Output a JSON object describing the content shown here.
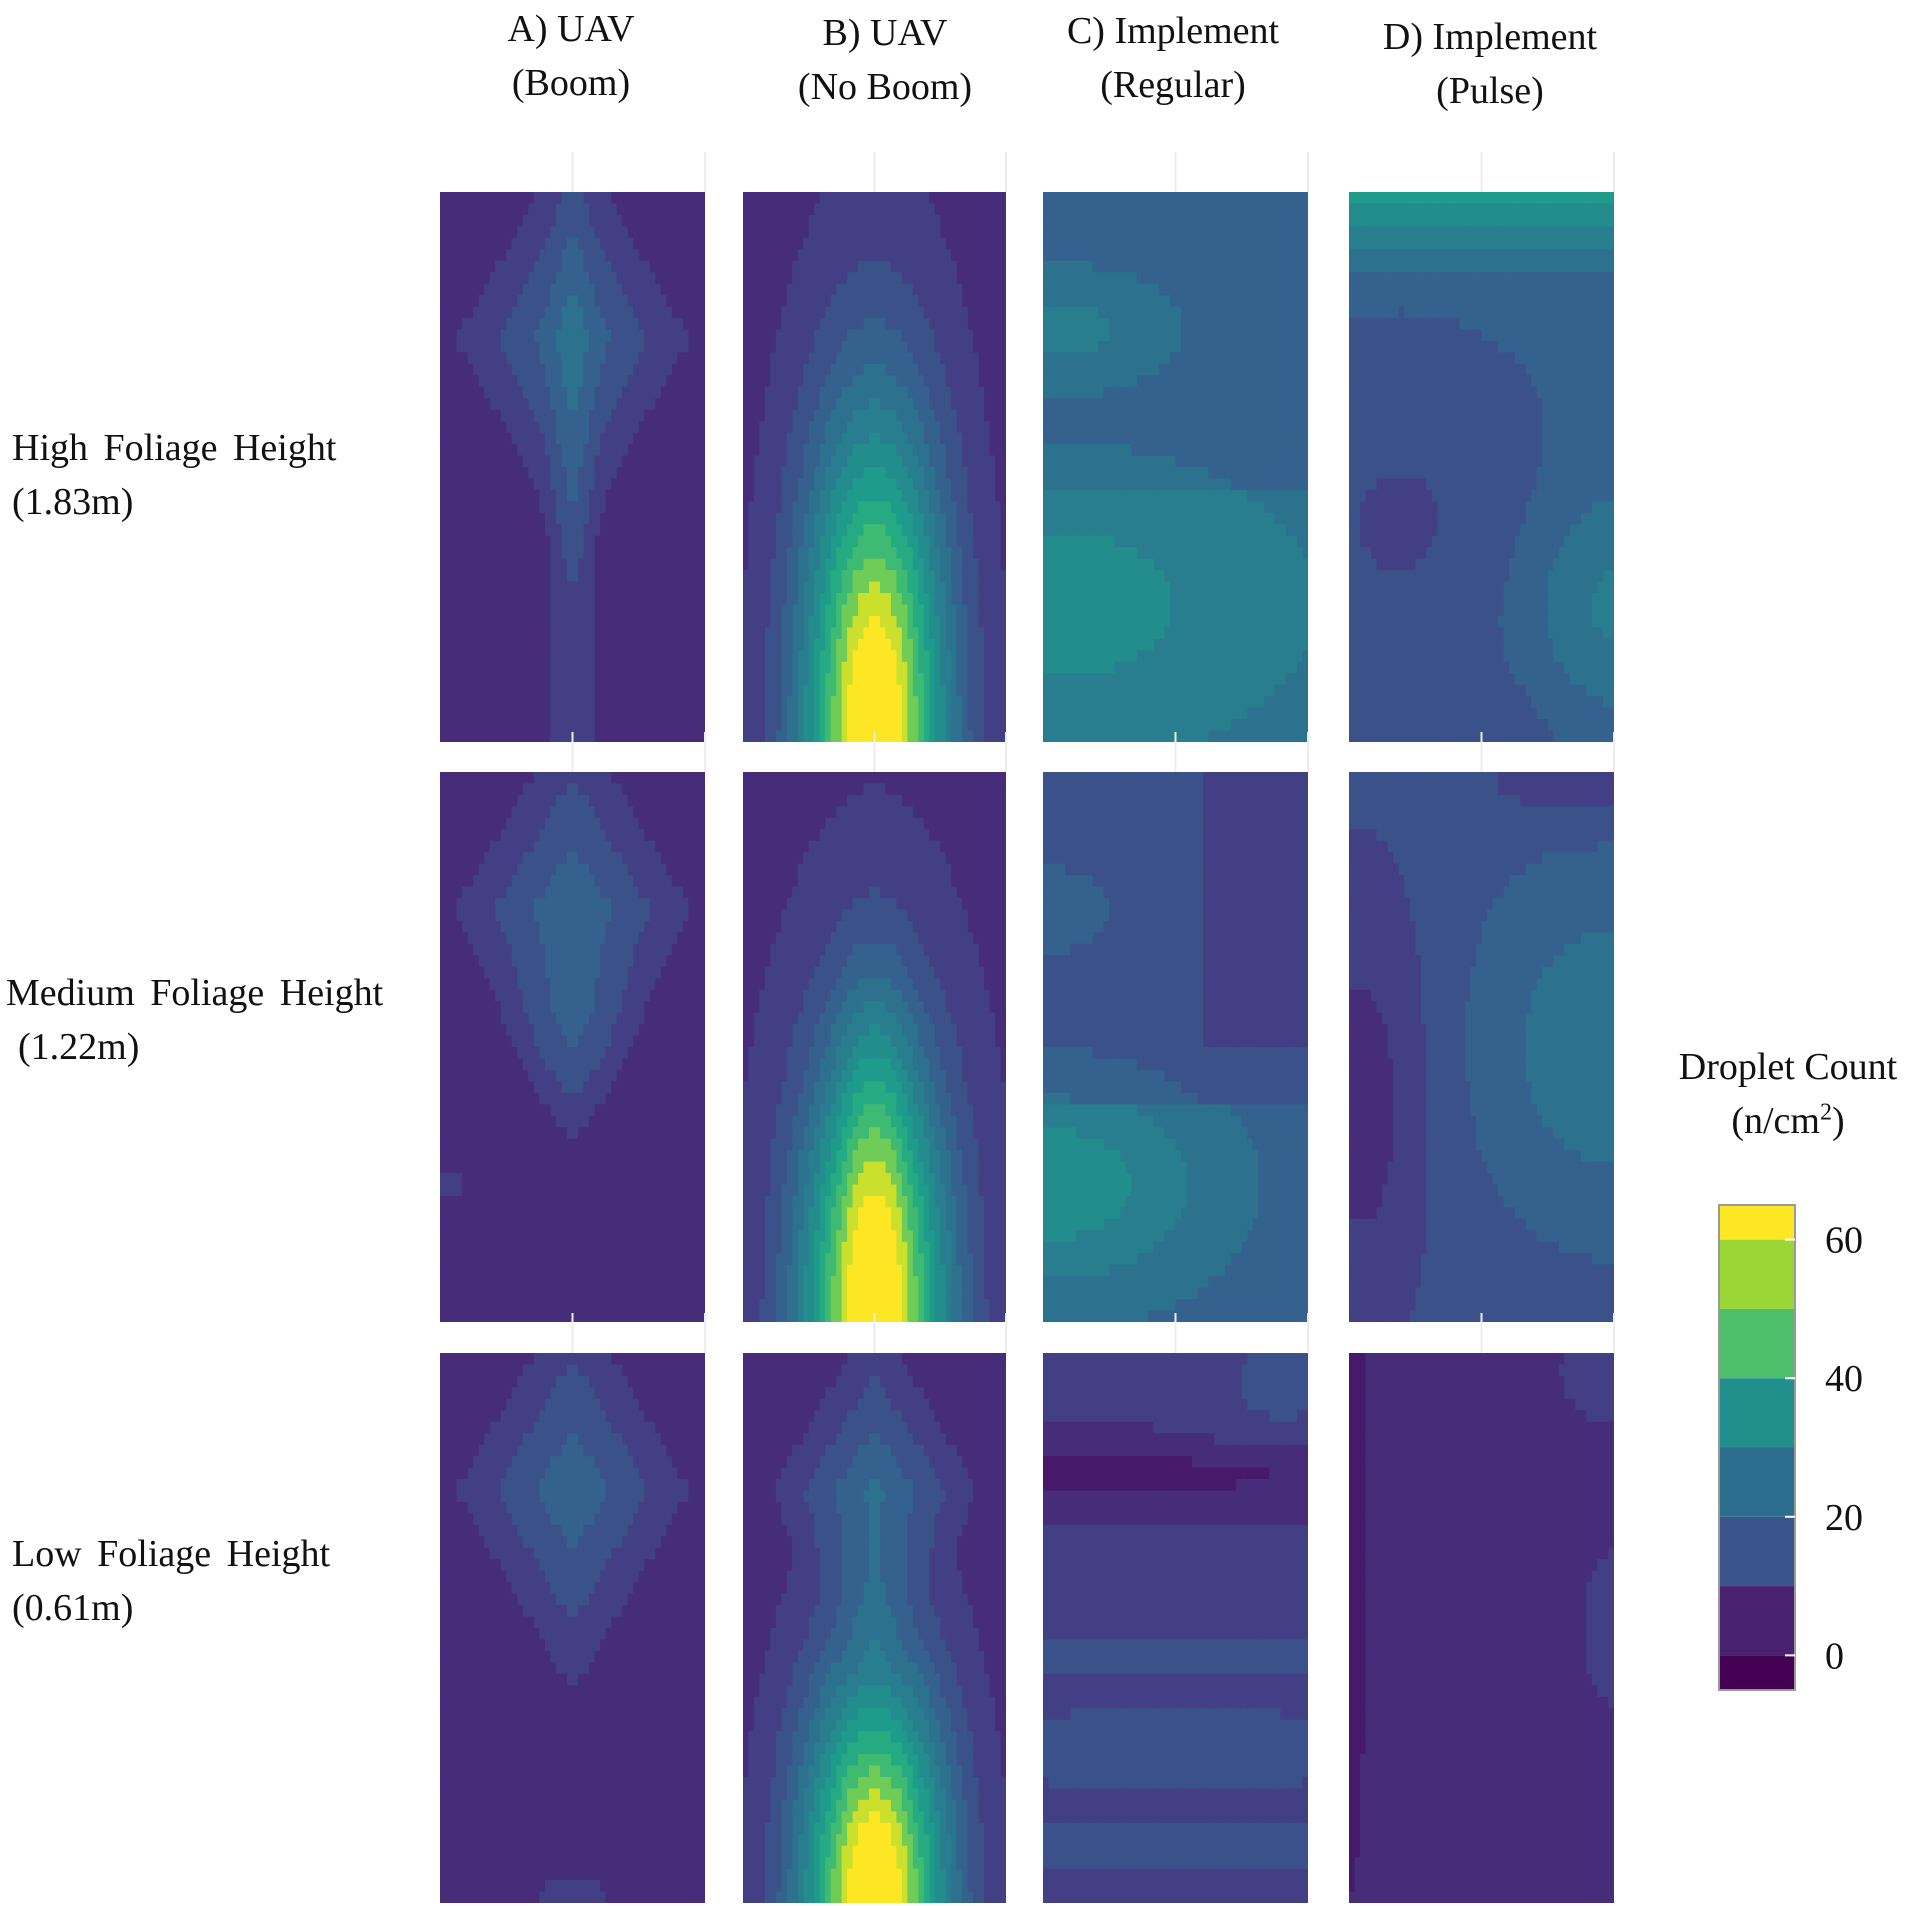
{
  "columns": [
    {
      "line1": "A) UAV",
      "line2": "(Boom)"
    },
    {
      "line1": "B) UAV",
      "line2": "(No Boom)"
    },
    {
      "line1": "C) Implement",
      "line2": "(Regular)"
    },
    {
      "line1": "D) Implement",
      "line2": "(Pulse)"
    }
  ],
  "rows": [
    {
      "line1": "High Foliage Height",
      "line2": "(1.83m)"
    },
    {
      "line1": "Medium Foliage Height",
      "line2": "(1.22m)"
    },
    {
      "line1": "Low Foliage Height",
      "line2": "(0.61m)"
    }
  ],
  "legend": {
    "title_line1": "Droplet Count",
    "title_line2_prefix": "(n/cm",
    "title_line2_sup": "2",
    "title_line2_suffix": ")"
  },
  "colors": {
    "background": "#ffffff",
    "grid": "#ececec",
    "contour_line": "#8a6f8c",
    "palette": [
      "#440154",
      "#48216f",
      "#443a83",
      "#3a548c",
      "#2d6e8e",
      "#21908d",
      "#27ad81",
      "#5ec962",
      "#aadc32",
      "#fde725"
    ]
  },
  "chart_data": {
    "type": "heatmap",
    "subtype": "filled contour (small multiples)",
    "legend_title": "Droplet Count (n/cm2)",
    "legend_position": "right",
    "grid": true,
    "axis_labels_shown": false,
    "scale": {
      "palette": "viridis",
      "breaks": [
        0,
        20,
        40,
        60
      ],
      "break_labels": [
        "0",
        "20",
        "40",
        "60"
      ],
      "band_bounds": [
        [
          -5,
          0
        ],
        [
          0,
          10
        ],
        [
          10,
          20
        ],
        [
          20,
          30
        ],
        [
          30,
          40
        ],
        [
          40,
          50
        ],
        [
          50,
          60
        ],
        [
          60,
          65
        ]
      ],
      "band_colors": [
        "#440154",
        "#48216f",
        "#3a548c",
        "#2d6e8e",
        "#21908d",
        "#4cbf6b",
        "#9ad636",
        "#fde725"
      ]
    },
    "panels": [
      {
        "row": "High Foliage Height (1.83m)",
        "column": "A) UAV (Boom)",
        "level_range": [
          0,
          20
        ],
        "description": "peak near upper-center, tail extending to bottom"
      },
      {
        "row": "High Foliage Height (1.83m)",
        "column": "B) UAV (No Boom)",
        "level_range": [
          0,
          65
        ],
        "description": "strong peak rising from bottom-center"
      },
      {
        "row": "High Foliage Height (1.83m)",
        "column": "C) Implement (Regular)",
        "level_range": [
          20,
          30
        ],
        "description": "broad mid band, lobes on left"
      },
      {
        "row": "High Foliage Height (1.83m)",
        "column": "D) Implement (Pulse)",
        "level_range": [
          10,
          40
        ],
        "description": "high band at top, lobe on right"
      },
      {
        "row": "Medium Foliage Height (1.22m)",
        "column": "A) UAV (Boom)",
        "level_range": [
          0,
          20
        ],
        "description": "peak upper-center"
      },
      {
        "row": "Medium Foliage Height (1.22m)",
        "column": "B) UAV (No Boom)",
        "level_range": [
          0,
          65
        ],
        "description": "peak rising from bottom-center"
      },
      {
        "row": "Medium Foliage Height (1.22m)",
        "column": "C) Implement (Regular)",
        "level_range": [
          10,
          30
        ],
        "description": "lobes on left, gradient to right"
      },
      {
        "row": "Medium Foliage Height (1.22m)",
        "column": "D) Implement (Pulse)",
        "level_range": [
          0,
          30
        ],
        "description": "lobe on right, low lobe on left"
      },
      {
        "row": "Low Foliage Height (0.61m)",
        "column": "A) UAV (Boom)",
        "level_range": [
          0,
          20
        ],
        "description": "peak upper-center"
      },
      {
        "row": "Low Foliage Height (0.61m)",
        "column": "B) UAV (No Boom)",
        "level_range": [
          0,
          65
        ],
        "description": "small peak upper-center, strong peak at bottom-center"
      },
      {
        "row": "Low Foliage Height (0.61m)",
        "column": "C) Implement (Regular)",
        "level_range": [
          0,
          20
        ],
        "description": "horizontal bands"
      },
      {
        "row": "Low Foliage Height (0.61m)",
        "column": "D) Implement (Pulse)",
        "level_range": [
          -5,
          20
        ],
        "description": "mostly uniform, low strip on left edge"
      }
    ]
  }
}
